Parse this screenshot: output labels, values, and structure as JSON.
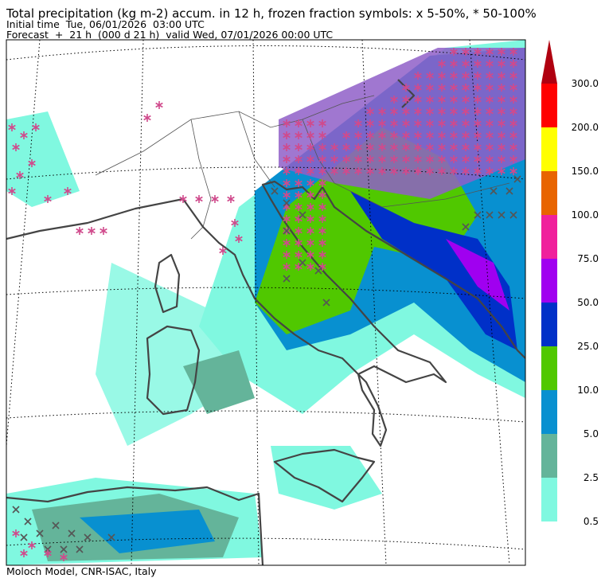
{
  "header": {
    "title": "Total precipitation (kg m-2) accum. in 12 h, frozen fraction symbols: x 5-50%, * 50-100%",
    "initial_time": "Initial time  Tue, 06/01/2026  03:00 UTC",
    "forecast": "Forecast  +  21 h  (000 d 21 h)  valid Wed, 07/01/2026 00:00 UTC"
  },
  "legend": {
    "labels": [
      "0.5",
      "2.5",
      "5.0",
      "10.0",
      "25.0",
      "50.0",
      "75.0",
      "100.0",
      "150.0",
      "200.0",
      "300.0"
    ],
    "colors": [
      "#80f8e0",
      "#64b49a",
      "#0890d0",
      "#50c800",
      "#0030c8",
      "#a000f0",
      "#f0209c",
      "#e86400",
      "#ffff00",
      "#ff0000",
      "#b00010"
    ]
  },
  "footer": {
    "credit": "Moloch Model, CNR-ISAC, Italy"
  }
}
